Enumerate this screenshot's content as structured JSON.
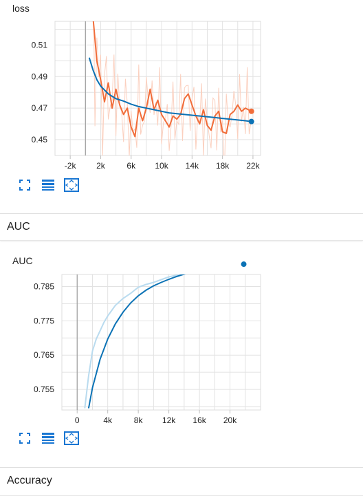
{
  "loss_card": {
    "title": "loss",
    "toolbar": {
      "expand_icon": "fullscreen-icon",
      "data_icon": "list-icon",
      "fit_icon": "fit-domain-icon"
    }
  },
  "auc_section": {
    "title": "AUC"
  },
  "auc_card": {
    "title": "AUC",
    "toolbar": {
      "expand_icon": "fullscreen-icon",
      "data_icon": "list-icon",
      "fit_icon": "fit-domain-icon"
    }
  },
  "accuracy_section": {
    "title": "Accuracy"
  },
  "colors": {
    "smoothed_orange": "#f16d3a",
    "raw_orange": "#fbd0bf",
    "smoothed_blue": "#0b72b5",
    "raw_blue": "#b9dbef",
    "grid": "#dcdcdc",
    "icon": "#1976d2"
  },
  "chart_data": [
    {
      "type": "line",
      "title": "loss",
      "xlim": [
        -4000,
        23000
      ],
      "ylim": [
        0.44,
        0.525
      ],
      "xticks": [
        -2000,
        2000,
        6000,
        10000,
        14000,
        18000,
        22000
      ],
      "xtick_labels": [
        "-2k",
        "2k",
        "6k",
        "10k",
        "14k",
        "18k",
        "22k"
      ],
      "yticks": [
        0.45,
        0.47,
        0.49,
        0.51
      ],
      "ytick_labels": [
        "0.45",
        "0.47",
        "0.49",
        "0.51"
      ],
      "zero_line_x": 0,
      "series": [
        {
          "role": "smoothed",
          "color": "#0b72b5",
          "x": [
            500,
            1000,
            1500,
            2000,
            3000,
            4000,
            5000,
            6000,
            7000,
            8000,
            9000,
            10000,
            11000,
            12000,
            13000,
            14000,
            15000,
            16000,
            17000,
            18000,
            19000,
            20000,
            21000,
            21800
          ],
          "y": [
            0.502,
            0.494,
            0.488,
            0.484,
            0.479,
            0.476,
            0.4745,
            0.4725,
            0.471,
            0.47,
            0.469,
            0.468,
            0.467,
            0.4665,
            0.466,
            0.4655,
            0.465,
            0.4645,
            0.464,
            0.4635,
            0.463,
            0.4625,
            0.462,
            0.4615
          ]
        },
        {
          "role": "smoothed-orange",
          "color": "#f16d3a",
          "x": [
            1000,
            1500,
            2000,
            2500,
            3000,
            3500,
            4000,
            4500,
            5000,
            5500,
            6000,
            6500,
            7000,
            7500,
            8000,
            8500,
            9000,
            9500,
            10000,
            10500,
            11000,
            11500,
            12000,
            12500,
            13000,
            13500,
            14000,
            14500,
            15000,
            15500,
            16000,
            16500,
            17000,
            17500,
            18000,
            18500,
            19000,
            19500,
            20000,
            20500,
            21000,
            21800
          ],
          "y": [
            0.527,
            0.5,
            0.488,
            0.474,
            0.486,
            0.47,
            0.482,
            0.472,
            0.466,
            0.47,
            0.458,
            0.452,
            0.47,
            0.462,
            0.47,
            0.482,
            0.469,
            0.475,
            0.466,
            0.462,
            0.458,
            0.465,
            0.463,
            0.466,
            0.476,
            0.479,
            0.472,
            0.465,
            0.46,
            0.469,
            0.459,
            0.456,
            0.465,
            0.468,
            0.455,
            0.454,
            0.466,
            0.468,
            0.472,
            0.468,
            0.47,
            0.468
          ]
        }
      ]
    },
    {
      "type": "line",
      "title": "AUC",
      "xlim": [
        -2000,
        24000
      ],
      "ylim": [
        0.749,
        0.7885
      ],
      "xticks": [
        0,
        4000,
        8000,
        12000,
        16000,
        20000
      ],
      "xtick_labels": [
        "0",
        "4k",
        "8k",
        "12k",
        "16k",
        "20k"
      ],
      "yticks": [
        0.755,
        0.765,
        0.775,
        0.785
      ],
      "ytick_labels": [
        "0.755",
        "0.765",
        "0.775",
        "0.785"
      ],
      "zero_line_x": 0,
      "series": [
        {
          "role": "raw",
          "color": "#b9dbef",
          "x": [
            1000,
            1500,
            2000,
            2500,
            3000,
            3500,
            4000,
            5000,
            6000,
            7000,
            8000,
            9000,
            10000,
            11000,
            12000,
            13000,
            14000,
            15000,
            16000,
            17000,
            18000,
            19000,
            20000,
            21000,
            21800
          ],
          "y": [
            0.7495,
            0.759,
            0.7662,
            0.7697,
            0.7721,
            0.7745,
            0.7764,
            0.7795,
            0.7815,
            0.783,
            0.7848,
            0.7856,
            0.7862,
            0.787,
            0.7878,
            0.7883,
            0.7885,
            0.7892,
            0.7895,
            0.7898,
            0.79,
            0.7905,
            0.7908,
            0.791,
            0.7912
          ]
        },
        {
          "role": "smoothed",
          "color": "#0b72b5",
          "x": [
            1500,
            2000,
            3000,
            4000,
            5000,
            6000,
            7000,
            8000,
            9000,
            10000,
            11000,
            12000,
            13000,
            14000,
            15000,
            16000,
            17000,
            18000,
            19000,
            20000,
            21000,
            21800
          ],
          "y": [
            0.7495,
            0.7555,
            0.7638,
            0.7697,
            0.7741,
            0.7775,
            0.7802,
            0.7823,
            0.7839,
            0.7852,
            0.7862,
            0.7871,
            0.7879,
            0.7886,
            0.7891,
            0.7896,
            0.7901,
            0.7905,
            0.7908,
            0.7911,
            0.7914,
            0.7915
          ]
        }
      ]
    }
  ]
}
